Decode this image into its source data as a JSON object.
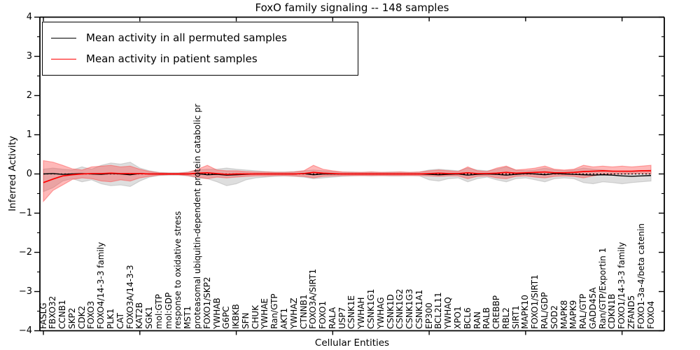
{
  "chart_data": {
    "type": "line",
    "title": "FoxO family signaling -- 148 samples",
    "xlabel": "Cellular Entities",
    "ylabel": "Inferred Activity",
    "ylim": [
      -4,
      4
    ],
    "yticks": [
      "4",
      "3",
      "2",
      "1",
      "0",
      "−1",
      "−2",
      "−3",
      "−4"
    ],
    "ytick_values": [
      4,
      3,
      2,
      1,
      0,
      -1,
      -2,
      -3,
      -4
    ],
    "y_minor_tick_values": [
      3.5,
      2.5,
      1.5,
      0.5,
      -0.5,
      -1.5,
      -2.5,
      -3.5
    ],
    "x_major_tick_indices": [
      0,
      10,
      20,
      30,
      40,
      50,
      60
    ],
    "grid": false,
    "legend_position": "upper left",
    "legend": {
      "entries": [
        {
          "label": "Mean activity in all permuted samples",
          "color": "#000000"
        },
        {
          "label": "Mean activity in patient samples",
          "color": "#ff0000"
        }
      ]
    },
    "zero_line": {
      "style": "dotted",
      "color": "#000000",
      "y": 0
    },
    "colors": {
      "permuted_line": "#000000",
      "patient_line": "#ff0000",
      "permuted_band": "#a8a8a8",
      "patient_band": "#ff4444",
      "axis": "#000000"
    },
    "categories": [
      "FASLG",
      "FBXO32",
      "CCNB1",
      "SKP2",
      "CDK2",
      "FOXO3",
      "FOXO4/14-3-3 family",
      "PLK1",
      "CAT",
      "FOXO3A/14-3-3",
      "KAT2B",
      "SGK1",
      "mol:GTP",
      "mol:GDP",
      "response to oxidative stress",
      "MST1",
      "proteasomal ubiquitin-dependent protein catabolic pr",
      "FOXO1/SKP2",
      "YWHAB",
      "G6PC",
      "IKBKB",
      "SFN",
      "CHUK",
      "YWHAE",
      "Ran/GTP",
      "AKT1",
      "YWHAZ",
      "CTNNB1",
      "FOXO3A/SIRT1",
      "FOXO1",
      "RALA",
      "USP7",
      "CSNK1E",
      "YWHAH",
      "CSNK1G1",
      "YWHAG",
      "CSNK1D",
      "CSNK1G2",
      "CSNK1G3",
      "CSNK1A1",
      "EP300",
      "BCL2L11",
      "YWHAQ",
      "XPO1",
      "BCL6",
      "RAN",
      "RALB",
      "CREBBP",
      "RBL2",
      "SIRT1",
      "MAPK10",
      "FOXO1/SIRT1",
      "RAL/GDP",
      "SOD2",
      "MAPK8",
      "MAPK9",
      "RAL/GTP",
      "GADD45A",
      "Ran/GTP/Exportin 1",
      "CDKN1B",
      "FOXO1/14-3-3 family",
      "ZFAND5",
      "FOXO1-3a-4/beta catenin",
      "FOXO4"
    ],
    "series": [
      {
        "name": "Mean activity in all permuted samples",
        "color": "#000000",
        "values": [
          0.0,
          0.01,
          -0.01,
          0.0,
          0.01,
          0.0,
          -0.01,
          0.01,
          0.0,
          -0.02,
          0.01,
          0.0,
          0.0,
          0.0,
          0.0,
          0.0,
          0.01,
          -0.02,
          -0.01,
          -0.03,
          -0.02,
          -0.01,
          0.0,
          0.0,
          0.0,
          0.0,
          0.0,
          0.01,
          -0.02,
          0.0,
          0.0,
          0.0,
          0.0,
          0.0,
          0.0,
          0.0,
          0.0,
          0.0,
          0.0,
          0.0,
          -0.01,
          -0.02,
          -0.01,
          0.0,
          -0.03,
          -0.01,
          0.0,
          -0.01,
          -0.03,
          -0.01,
          0.01,
          0.0,
          -0.02,
          0.01,
          0.0,
          -0.01,
          -0.02,
          -0.03,
          -0.02,
          -0.03,
          -0.05,
          -0.06,
          -0.05,
          -0.04
        ]
      },
      {
        "name": "Mean activity in patient samples",
        "color": "#ff0000",
        "values": [
          -0.22,
          -0.13,
          -0.05,
          -0.02,
          0.0,
          0.01,
          0.01,
          0.02,
          0.01,
          0.01,
          0.01,
          0.0,
          0.0,
          0.0,
          0.0,
          0.0,
          0.02,
          0.03,
          0.01,
          -0.01,
          0.0,
          0.0,
          0.0,
          0.0,
          0.0,
          0.0,
          0.0,
          0.01,
          0.04,
          0.02,
          0.01,
          0.0,
          0.0,
          0.0,
          0.0,
          0.0,
          0.0,
          0.0,
          0.0,
          0.0,
          0.01,
          0.02,
          0.01,
          0.01,
          0.03,
          0.01,
          0.01,
          0.02,
          0.04,
          0.02,
          0.03,
          0.04,
          0.05,
          0.03,
          0.03,
          0.04,
          0.06,
          0.07,
          0.08,
          0.07,
          0.07,
          0.07,
          0.08,
          0.08
        ]
      }
    ],
    "bands": [
      {
        "name": "permuted samples range",
        "color": "#a8a8a8",
        "upper": [
          0.12,
          0.15,
          0.12,
          0.1,
          0.18,
          0.12,
          0.22,
          0.28,
          0.25,
          0.3,
          0.15,
          0.08,
          0.04,
          0.03,
          0.03,
          0.05,
          0.1,
          0.12,
          0.12,
          0.15,
          0.12,
          0.1,
          0.08,
          0.06,
          0.05,
          0.05,
          0.06,
          0.08,
          0.1,
          0.08,
          0.06,
          0.05,
          0.05,
          0.04,
          0.05,
          0.04,
          0.05,
          0.05,
          0.04,
          0.05,
          0.1,
          0.12,
          0.1,
          0.08,
          0.15,
          0.1,
          0.08,
          0.12,
          0.18,
          0.1,
          0.08,
          0.1,
          0.15,
          0.1,
          0.08,
          0.1,
          0.15,
          0.12,
          0.1,
          0.08,
          0.06,
          0.05,
          0.08,
          0.1
        ],
        "lower": [
          -0.45,
          -0.35,
          -0.18,
          -0.12,
          -0.2,
          -0.15,
          -0.25,
          -0.3,
          -0.28,
          -0.32,
          -0.18,
          -0.08,
          -0.04,
          -0.03,
          -0.03,
          -0.05,
          -0.1,
          -0.12,
          -0.2,
          -0.3,
          -0.25,
          -0.15,
          -0.1,
          -0.08,
          -0.06,
          -0.05,
          -0.06,
          -0.08,
          -0.12,
          -0.1,
          -0.08,
          -0.06,
          -0.05,
          -0.04,
          -0.05,
          -0.04,
          -0.05,
          -0.05,
          -0.04,
          -0.05,
          -0.15,
          -0.18,
          -0.12,
          -0.1,
          -0.2,
          -0.12,
          -0.08,
          -0.15,
          -0.2,
          -0.12,
          -0.1,
          -0.15,
          -0.2,
          -0.12,
          -0.1,
          -0.12,
          -0.22,
          -0.25,
          -0.2,
          -0.22,
          -0.25,
          -0.22,
          -0.2,
          -0.18
        ]
      },
      {
        "name": "patient samples range",
        "color": "#ff4444",
        "upper": [
          0.34,
          0.3,
          0.22,
          0.13,
          0.1,
          0.18,
          0.2,
          0.22,
          0.18,
          0.2,
          0.12,
          0.06,
          0.03,
          0.02,
          0.02,
          0.04,
          0.12,
          0.22,
          0.1,
          0.08,
          0.08,
          0.06,
          0.05,
          0.05,
          0.04,
          0.04,
          0.05,
          0.08,
          0.22,
          0.12,
          0.08,
          0.05,
          0.04,
          0.04,
          0.05,
          0.04,
          0.04,
          0.05,
          0.04,
          0.05,
          0.08,
          0.1,
          0.08,
          0.06,
          0.18,
          0.08,
          0.06,
          0.15,
          0.2,
          0.1,
          0.12,
          0.15,
          0.2,
          0.12,
          0.1,
          0.12,
          0.22,
          0.18,
          0.2,
          0.18,
          0.2,
          0.18,
          0.2,
          0.22
        ],
        "lower": [
          -0.7,
          -0.42,
          -0.28,
          -0.14,
          -0.1,
          -0.12,
          -0.18,
          -0.2,
          -0.15,
          -0.18,
          -0.1,
          -0.06,
          -0.03,
          -0.02,
          -0.02,
          -0.04,
          -0.08,
          -0.12,
          -0.08,
          -0.1,
          -0.08,
          -0.06,
          -0.05,
          -0.05,
          -0.04,
          -0.04,
          -0.05,
          -0.06,
          -0.1,
          -0.06,
          -0.05,
          -0.04,
          -0.04,
          -0.04,
          -0.04,
          -0.04,
          -0.04,
          -0.04,
          -0.04,
          -0.04,
          -0.05,
          -0.06,
          -0.05,
          -0.05,
          -0.12,
          -0.06,
          -0.05,
          -0.1,
          -0.12,
          -0.06,
          -0.05,
          -0.08,
          -0.1,
          -0.06,
          -0.05,
          -0.06,
          -0.1,
          -0.05,
          -0.01,
          0.0,
          0.0,
          0.0,
          0.02,
          0.0
        ]
      }
    ]
  }
}
